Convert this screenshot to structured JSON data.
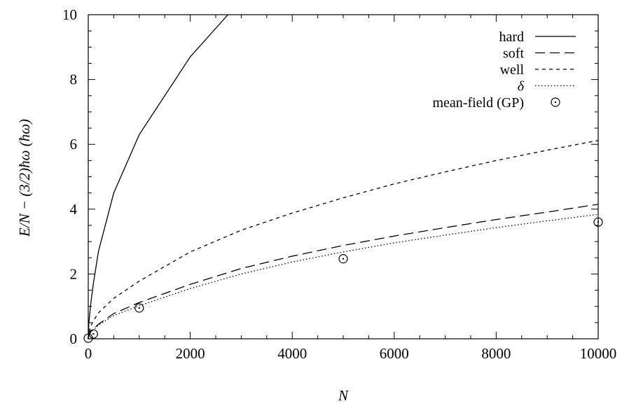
{
  "chart_data": {
    "type": "line",
    "xlabel": "N",
    "ylabel": "E/N − (3/2)ħω (ħω)",
    "xlim": [
      0,
      10000
    ],
    "ylim": [
      0,
      10
    ],
    "xticks": [
      0,
      2000,
      4000,
      6000,
      8000,
      10000
    ],
    "yticks": [
      0,
      2,
      4,
      6,
      8,
      10
    ],
    "x_tick_labels": [
      "0",
      "2000",
      "4000",
      "6000",
      "8000",
      "10000"
    ],
    "y_tick_labels": [
      "0",
      "2",
      "4",
      "6",
      "8",
      "10"
    ],
    "grid": false,
    "legend_position": "top-right",
    "series": [
      {
        "name": "hard",
        "style": "solid",
        "x": [
          0,
          10,
          50,
          100,
          200,
          500,
          1000,
          2000,
          2740
        ],
        "y": [
          0,
          0.45,
          1.1,
          1.7,
          2.7,
          4.5,
          6.3,
          8.7,
          10.0
        ]
      },
      {
        "name": "soft",
        "style": "long-dash",
        "x": [
          0,
          10,
          50,
          100,
          200,
          500,
          1000,
          2000,
          3000,
          4000,
          5000,
          6000,
          7000,
          8000,
          9000,
          10000
        ],
        "y": [
          0,
          0.1,
          0.22,
          0.3,
          0.45,
          0.78,
          1.12,
          1.68,
          2.17,
          2.55,
          2.88,
          3.17,
          3.43,
          3.68,
          3.91,
          4.15
        ]
      },
      {
        "name": "well",
        "style": "short-dash",
        "x": [
          0,
          10,
          50,
          100,
          200,
          500,
          1000,
          2000,
          3000,
          4000,
          5000,
          6000,
          7000,
          8000,
          9000,
          10000
        ],
        "y": [
          0,
          0.18,
          0.4,
          0.55,
          0.8,
          1.25,
          1.78,
          2.68,
          3.35,
          3.88,
          4.35,
          4.78,
          5.15,
          5.5,
          5.82,
          6.12
        ]
      },
      {
        "name": "δ",
        "style": "dotted",
        "x": [
          0,
          10,
          50,
          100,
          200,
          500,
          1000,
          2000,
          3000,
          4000,
          5000,
          6000,
          7000,
          8000,
          9000,
          10000
        ],
        "y": [
          0,
          0.1,
          0.2,
          0.28,
          0.42,
          0.72,
          1.02,
          1.55,
          2.0,
          2.37,
          2.68,
          2.96,
          3.2,
          3.43,
          3.64,
          3.84
        ]
      },
      {
        "name": "mean-field (GP)",
        "style": "markers",
        "x": [
          0,
          100,
          1000,
          5000,
          10000
        ],
        "y": [
          0.02,
          0.15,
          0.95,
          2.47,
          3.6
        ]
      }
    ]
  }
}
